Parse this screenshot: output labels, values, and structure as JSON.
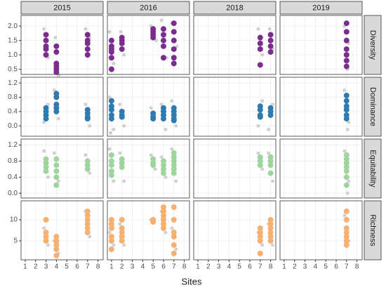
{
  "chart_data": {
    "type": "scatter",
    "x_label": "Sites",
    "xlim": [
      0.6,
      8.5
    ],
    "xticks": [
      1,
      2,
      3,
      4,
      5,
      6,
      7,
      8
    ],
    "grid": true,
    "background_color": "#bdbdbd",
    "columns": [
      "2015",
      "2016",
      "2018",
      "2019"
    ],
    "rows": [
      {
        "label": "Diversity",
        "color": "#7b2d8e",
        "ylim": [
          0.32,
          2.37
        ],
        "yticks": [
          0.5,
          {
            "value": 1,
            "label": "1.0"
          },
          1.5,
          {
            "value": 2,
            "label": "2.0"
          }
        ]
      },
      {
        "label": "Dominance",
        "color": "#2f7bb0",
        "ylim": [
          -0.29,
          1.36
        ],
        "yticks": [
          {
            "value": 0,
            "label": "0.0"
          },
          0.4,
          0.8,
          1.2
        ]
      },
      {
        "label": "Equitability",
        "color": "#9fd49f",
        "ylim": [
          -0.12,
          1.35
        ],
        "yticks": [
          {
            "value": 0,
            "label": "0.0"
          },
          0.4,
          0.8,
          1.2
        ]
      },
      {
        "label": "Richness",
        "color": "#f5b072",
        "ylim": [
          0.5,
          14.5
        ],
        "yticks": [
          5,
          10
        ]
      }
    ],
    "panels": [
      [
        {
          "x": [
            3,
            3,
            3,
            3,
            3,
            4,
            4,
            4,
            4,
            4,
            4,
            7,
            7,
            7,
            7,
            7
          ],
          "values": [
            1.7,
            1.5,
            1.3,
            1.2,
            1.0,
            1.3,
            1.1,
            0.7,
            0.6,
            0.5,
            0.4,
            1.7,
            1.5,
            1.4,
            1.2,
            1.0
          ],
          "bg_x": [
            2.8,
            3.2,
            3.9,
            4.2,
            6.8,
            7.2
          ],
          "bg_values": [
            1.9,
            0.9,
            1.6,
            0.3,
            1.9,
            1.6
          ]
        },
        {
          "x": [
            1,
            1,
            1,
            1,
            1,
            1,
            2,
            2,
            2,
            2,
            5,
            5,
            5,
            5,
            6,
            6,
            6,
            6,
            6,
            7,
            7,
            7,
            7,
            7,
            7
          ],
          "values": [
            1.5,
            1.3,
            1.2,
            1.1,
            0.9,
            0.5,
            1.6,
            1.5,
            1.4,
            1.2,
            1.9,
            1.8,
            1.7,
            1.6,
            1.9,
            1.7,
            1.5,
            1.3,
            0.9,
            2.1,
            1.8,
            1.5,
            1.2,
            0.9,
            0.7
          ],
          "bg_x": [
            0.8,
            1.2,
            1.9,
            2.2,
            4.8,
            5.3,
            5.8,
            6.3,
            6.8,
            7.3
          ],
          "bg_values": [
            1.8,
            0.7,
            1.8,
            1.0,
            2.0,
            1.5,
            2.2,
            0.9,
            2.1,
            1.3
          ]
        },
        {
          "x": [
            7,
            7,
            7,
            7,
            8,
            8,
            8,
            8
          ],
          "values": [
            1.6,
            1.4,
            1.2,
            0.65,
            1.7,
            1.5,
            1.3,
            1.1
          ],
          "bg_x": [
            6.8,
            7.2,
            7.9,
            8.2
          ],
          "bg_values": [
            1.9,
            1.0,
            1.9,
            1.2
          ]
        },
        {
          "x": [
            7,
            7,
            7,
            7,
            7,
            7,
            7
          ],
          "values": [
            2.1,
            1.8,
            1.5,
            1.2,
            1.0,
            0.8,
            0.6
          ],
          "bg_x": [
            6.8,
            7.2,
            7.1
          ],
          "bg_values": [
            2.0,
            1.4,
            0.5
          ]
        }
      ],
      [
        {
          "x": [
            3,
            3,
            3,
            3,
            4,
            4,
            4,
            4,
            4,
            7,
            7,
            7,
            7
          ],
          "values": [
            0.5,
            0.4,
            0.3,
            0.2,
            0.9,
            0.8,
            0.6,
            0.5,
            0.4,
            0.45,
            0.35,
            0.25,
            0.2
          ],
          "bg_x": [
            2.8,
            3.2,
            3.8,
            4.2,
            6.8,
            7.2
          ],
          "bg_values": [
            0.1,
            0.6,
            1.0,
            0.2,
            0.6,
            0.0
          ]
        },
        {
          "x": [
            1,
            1,
            1,
            1,
            1,
            2,
            2,
            2,
            5,
            5,
            5,
            6,
            6,
            6,
            6,
            7,
            7,
            7,
            7,
            7
          ],
          "values": [
            0.7,
            0.55,
            0.45,
            0.3,
            0.2,
            0.4,
            0.3,
            0.25,
            0.35,
            0.25,
            0.2,
            0.5,
            0.4,
            0.3,
            0.2,
            0.5,
            0.4,
            0.3,
            0.2,
            0.15
          ],
          "bg_x": [
            0.8,
            1.2,
            0.9,
            1.8,
            2.2,
            4.8,
            5.8,
            6.2,
            6.8,
            7.2
          ],
          "bg_values": [
            0.8,
            -0.1,
            -0.2,
            0.6,
            0.0,
            0.5,
            0.6,
            -0.1,
            0.7,
            0.0
          ]
        },
        {
          "x": [
            7,
            7,
            7,
            7,
            8,
            8,
            8
          ],
          "values": [
            0.55,
            0.45,
            0.3,
            0.25,
            0.5,
            0.4,
            0.3
          ],
          "bg_x": [
            6.8,
            7.2,
            7.8,
            8.2
          ],
          "bg_values": [
            0.0,
            0.7,
            -0.1,
            0.6
          ]
        },
        {
          "x": [
            7,
            7,
            7,
            7,
            7,
            7
          ],
          "values": [
            0.85,
            0.7,
            0.55,
            0.45,
            0.3,
            0.2
          ],
          "bg_x": [
            6.8,
            7.2,
            7.1
          ],
          "bg_values": [
            1.0,
            0.1,
            -0.1
          ]
        }
      ],
      [
        {
          "x": [
            3,
            3,
            3,
            3,
            4,
            4,
            4,
            4,
            4,
            7,
            7,
            7
          ],
          "values": [
            0.85,
            0.75,
            0.65,
            0.55,
            0.85,
            0.7,
            0.55,
            0.4,
            0.2,
            0.8,
            0.7,
            0.6
          ],
          "bg_x": [
            2.8,
            3.2,
            3.8,
            4.2,
            6.8,
            7.2
          ],
          "bg_values": [
            1.05,
            0.4,
            1.0,
            0.3,
            0.95,
            0.5
          ]
        },
        {
          "x": [
            1,
            1,
            1,
            1,
            1,
            2,
            2,
            2,
            5,
            5,
            5,
            6,
            6,
            6,
            6,
            7,
            7,
            7,
            7,
            7,
            7
          ],
          "values": [
            0.95,
            0.8,
            0.7,
            0.55,
            0.45,
            0.85,
            0.75,
            0.65,
            0.85,
            0.75,
            0.7,
            0.8,
            0.7,
            0.6,
            0.5,
            1.0,
            0.9,
            0.8,
            0.7,
            0.6,
            0.5
          ],
          "bg_x": [
            0.8,
            1.2,
            1.8,
            2.2,
            4.8,
            5.2,
            5.8,
            6.2,
            6.8,
            7.2
          ],
          "bg_values": [
            1.1,
            0.3,
            1.0,
            0.3,
            0.95,
            0.6,
            0.9,
            0.4,
            1.1,
            0.3
          ]
        },
        {
          "x": [
            7,
            7,
            7,
            8,
            8,
            8,
            8
          ],
          "values": [
            0.9,
            0.8,
            0.7,
            0.9,
            0.8,
            0.7,
            0.5
          ],
          "bg_x": [
            6.8,
            7.2,
            7.8,
            8.2
          ],
          "bg_values": [
            1.0,
            0.6,
            1.0,
            0.3
          ]
        },
        {
          "x": [
            7,
            7,
            7,
            7,
            7,
            7,
            7
          ],
          "values": [
            0.95,
            0.85,
            0.75,
            0.65,
            0.55,
            0.4,
            0.2
          ],
          "bg_x": [
            6.8,
            7.2,
            7.1
          ],
          "bg_values": [
            1.05,
            0.3,
            0.0
          ]
        }
      ],
      [
        {
          "x": [
            3,
            3,
            3,
            3,
            4,
            4,
            4,
            4,
            4,
            7,
            7,
            7,
            7,
            7,
            7
          ],
          "values": [
            10,
            7,
            6,
            5,
            6,
            5,
            4,
            3,
            1.5,
            12,
            11,
            10,
            9,
            8,
            7
          ],
          "bg_x": [
            2.8,
            3.2,
            3.8,
            4.2,
            6.8,
            7.2
          ],
          "bg_values": [
            8,
            4,
            5,
            2,
            12,
            6
          ]
        },
        {
          "x": [
            1,
            1,
            1,
            1,
            1,
            1,
            2,
            2,
            2,
            2,
            2,
            5,
            5,
            6,
            6,
            6,
            6,
            6,
            6,
            7,
            7,
            7,
            7,
            7,
            7
          ],
          "values": [
            10,
            9,
            8,
            6,
            5,
            3,
            10,
            8,
            7,
            6,
            5,
            10,
            9.5,
            13,
            12,
            11,
            10,
            9,
            8,
            13,
            10,
            7,
            6,
            4,
            2
          ],
          "bg_x": [
            0.8,
            1.2,
            1.8,
            2.2,
            4.8,
            5.8,
            6.2,
            6.8,
            7.2
          ],
          "bg_values": [
            7,
            4,
            9,
            4,
            10,
            12,
            7,
            8,
            3
          ]
        },
        {
          "x": [
            7,
            7,
            7,
            7,
            7,
            8,
            8,
            8,
            8,
            8,
            8
          ],
          "values": [
            8,
            7,
            6,
            5,
            2,
            10,
            9,
            8,
            7,
            6,
            5
          ],
          "bg_x": [
            6.8,
            7.2,
            7.8,
            8.2
          ],
          "bg_values": [
            7,
            4,
            9,
            4
          ]
        },
        {
          "x": [
            7,
            7,
            7,
            7,
            7,
            7,
            7
          ],
          "values": [
            12,
            10,
            8,
            7,
            6,
            5,
            4
          ],
          "bg_x": [
            6.8,
            7.2
          ],
          "bg_values": [
            11,
            5
          ]
        }
      ]
    ]
  }
}
